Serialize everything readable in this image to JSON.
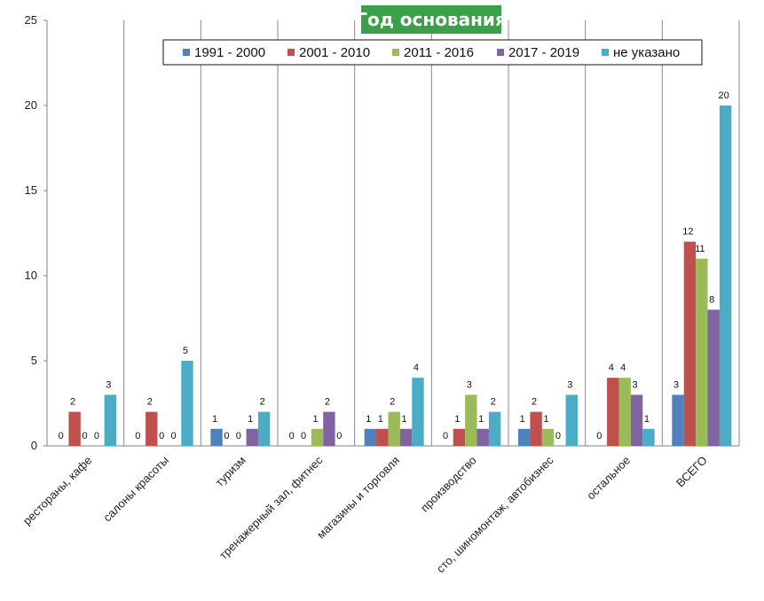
{
  "chart_data": {
    "type": "bar",
    "title": "Год основания",
    "categories": [
      "рестораны, кафе",
      "салоны красоты",
      "туризм",
      "тренажерный зал, фитнес",
      "магазины и торговля",
      "производство",
      "сто, шиномонтаж, автобизнес",
      "остальное",
      "ВСЕГО"
    ],
    "series": [
      {
        "name": "1991 - 2000",
        "color": "#4f81bd",
        "values": [
          0,
          0,
          1,
          0,
          1,
          0,
          1,
          0,
          3
        ]
      },
      {
        "name": "2001 - 2010",
        "color": "#c0504d",
        "values": [
          2,
          2,
          0,
          0,
          1,
          1,
          2,
          4,
          12
        ]
      },
      {
        "name": "2011 - 2016",
        "color": "#9bbb59",
        "values": [
          0,
          0,
          0,
          1,
          2,
          3,
          1,
          4,
          11
        ]
      },
      {
        "name": "2017 - 2019",
        "color": "#8064a2",
        "values": [
          0,
          0,
          1,
          2,
          1,
          1,
          0,
          3,
          8
        ]
      },
      {
        "name": "не указано",
        "color": "#4bacc6",
        "values": [
          3,
          5,
          2,
          0,
          4,
          2,
          3,
          1,
          20
        ]
      }
    ],
    "label_visible": [
      [
        true,
        true,
        true,
        true,
        true,
        true,
        true,
        true,
        true
      ],
      [
        true,
        true,
        true,
        true,
        true,
        true,
        true,
        true,
        true
      ],
      [
        true,
        true,
        true,
        true,
        true,
        true,
        true,
        true,
        true
      ],
      [
        true,
        true,
        true,
        true,
        true,
        true,
        true,
        true,
        true
      ],
      [
        true,
        true,
        true,
        true,
        true,
        true,
        true,
        true,
        true
      ]
    ],
    "ylim": [
      0,
      25
    ],
    "yticks": [
      0,
      5,
      10,
      15,
      20,
      25
    ],
    "legend_position": "top",
    "grid": "vertical category separators"
  }
}
